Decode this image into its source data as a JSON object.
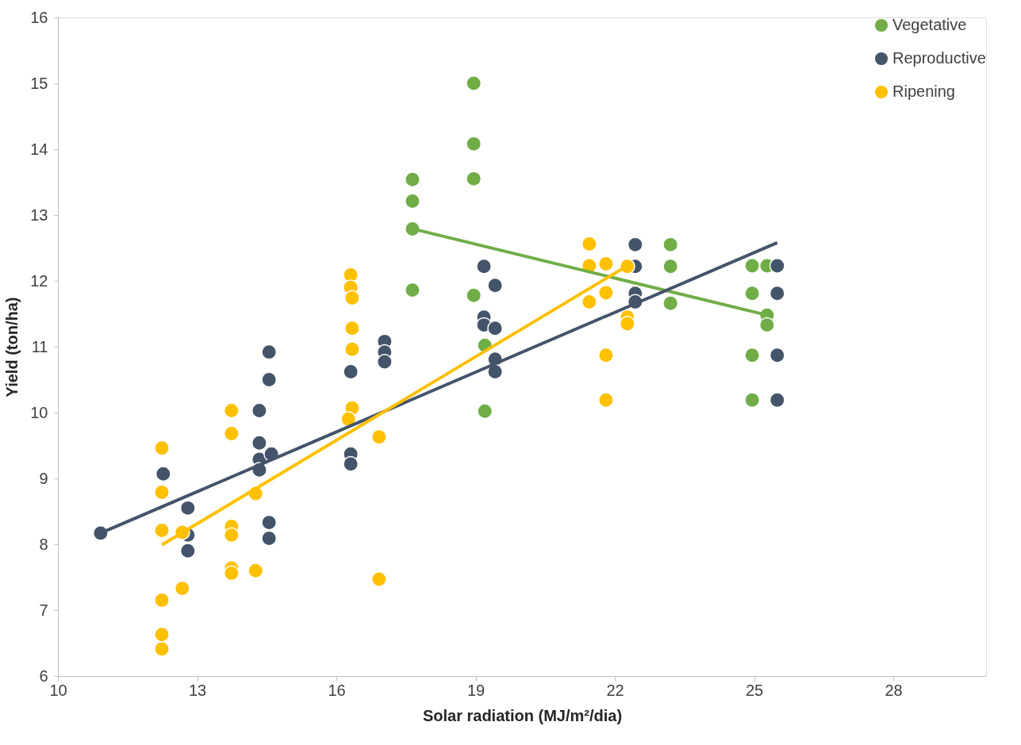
{
  "chart_data": {
    "type": "scatter",
    "xlabel": "Solar radiation (MJ/m²/dia)",
    "ylabel": "Yield (ton/ha)",
    "xlim": [
      10,
      30
    ],
    "xticks": [
      10,
      13,
      16,
      19,
      22,
      25,
      28
    ],
    "ylim": [
      6,
      16
    ],
    "yticks": [
      6,
      7,
      8,
      9,
      10,
      11,
      12,
      13,
      14,
      15,
      16
    ],
    "grid": false,
    "legend": "top right",
    "marker": "circle",
    "series": [
      {
        "name": "Vegetative",
        "color": "#70ad47",
        "x": [
          17.64,
          17.64,
          17.64,
          17.64,
          18.96,
          18.96,
          18.96,
          18.96,
          19.2,
          19.2,
          23.2,
          23.2,
          23.2,
          24.96,
          25.28,
          24.96,
          25.28,
          25.28,
          24.96,
          24.96
        ],
        "values": [
          13.54,
          13.21,
          12.79,
          11.86,
          15.0,
          14.08,
          13.55,
          11.78,
          11.02,
          10.02,
          12.55,
          12.22,
          11.66,
          12.23,
          12.23,
          11.81,
          11.48,
          11.33,
          10.87,
          10.19
        ]
      },
      {
        "name": "Reproductive",
        "color": "#44546a",
        "x": [
          10.92,
          12.27,
          12.8,
          12.8,
          12.8,
          14.34,
          14.34,
          14.34,
          14.34,
          14.6,
          14.55,
          14.55,
          14.55,
          14.55,
          16.31,
          16.31,
          16.31,
          17.04,
          17.04,
          17.04,
          19.18,
          19.42,
          19.18,
          19.18,
          19.42,
          19.42,
          19.42,
          22.44,
          22.44,
          22.44,
          22.44,
          25.5,
          25.5,
          25.5,
          25.5
        ],
        "values": [
          8.17,
          9.07,
          8.55,
          8.14,
          7.9,
          10.03,
          9.54,
          9.29,
          9.13,
          9.37,
          10.92,
          10.5,
          8.33,
          8.09,
          10.62,
          9.37,
          9.22,
          11.08,
          10.92,
          10.77,
          12.22,
          11.93,
          11.45,
          11.33,
          11.28,
          10.81,
          10.62,
          12.55,
          12.22,
          11.81,
          11.68,
          12.23,
          11.81,
          10.87,
          10.19
        ]
      },
      {
        "name": "Ripening",
        "color": "#ffc000",
        "x": [
          12.24,
          12.24,
          12.24,
          12.24,
          12.24,
          12.24,
          12.68,
          12.68,
          13.74,
          13.74,
          13.74,
          13.74,
          13.74,
          13.74,
          14.26,
          14.26,
          16.31,
          16.31,
          16.34,
          16.34,
          16.34,
          16.34,
          16.26,
          16.92,
          16.92,
          21.45,
          21.45,
          21.81,
          21.45,
          21.81,
          21.81,
          21.81,
          22.27,
          22.27,
          22.27
        ],
        "values": [
          9.46,
          8.79,
          8.21,
          7.15,
          6.63,
          6.41,
          8.18,
          7.33,
          10.03,
          9.68,
          8.27,
          8.14,
          7.64,
          7.56,
          8.77,
          7.6,
          12.09,
          11.9,
          11.74,
          11.28,
          10.96,
          10.07,
          9.9,
          9.63,
          7.47,
          12.56,
          12.23,
          12.26,
          11.68,
          11.82,
          10.87,
          10.19,
          12.22,
          11.45,
          11.35
        ]
      },
      {
        "type": "line",
        "marker": "none",
        "color": "#70ad47",
        "x": [
          17.64,
          25.28
        ],
        "values": [
          12.79,
          11.48
        ]
      },
      {
        "type": "line",
        "marker": "none",
        "color": "#44546a",
        "x": [
          10.92,
          25.5
        ],
        "values": [
          8.17,
          12.58
        ]
      },
      {
        "type": "line",
        "marker": "none",
        "color": "#ffc000",
        "x": [
          12.24,
          22.27
        ],
        "values": [
          7.99,
          12.23
        ]
      }
    ]
  }
}
